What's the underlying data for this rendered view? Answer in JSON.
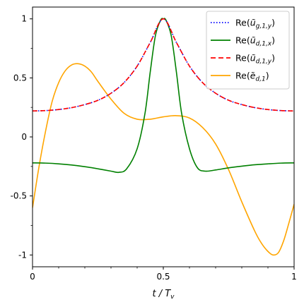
{
  "chart_data": {
    "type": "line",
    "title": "",
    "xlabel": "t / T_v",
    "ylabel": "",
    "xlim": [
      0,
      1
    ],
    "ylim": [
      -1.1,
      1.1
    ],
    "xticks": [
      0,
      0.5,
      1
    ],
    "xtick_labels": [
      "0",
      "0.5",
      "1"
    ],
    "yticks": [
      -1,
      -0.5,
      0,
      0.5,
      1
    ],
    "ytick_labels": [
      "-1",
      "-0.5",
      "0",
      "0.5",
      "1"
    ],
    "grid": false,
    "legend_position": "top-right",
    "series": [
      {
        "name": "Re(ũ_{g,1,y})",
        "color": "#0000ff",
        "dash": "dotted",
        "x": [
          0,
          0.05,
          0.1,
          0.15,
          0.2,
          0.25,
          0.3,
          0.35,
          0.4,
          0.45,
          0.5,
          0.55,
          0.6,
          0.65,
          0.7,
          0.75,
          0.8,
          0.85,
          0.9,
          0.95,
          1
        ],
        "y": [
          0.22,
          0.223,
          0.232,
          0.248,
          0.274,
          0.31,
          0.37,
          0.46,
          0.6,
          0.8,
          1.0,
          0.8,
          0.6,
          0.46,
          0.37,
          0.31,
          0.274,
          0.248,
          0.232,
          0.223,
          0.22
        ]
      },
      {
        "name": "Re(ũ_{d,1,x})",
        "color": "#008000",
        "dash": "solid",
        "x": [
          0,
          0.05,
          0.1,
          0.15,
          0.2,
          0.25,
          0.3,
          0.33,
          0.36,
          0.4,
          0.43,
          0.45,
          0.47,
          0.49,
          0.5,
          0.51,
          0.53,
          0.55,
          0.57,
          0.6,
          0.63,
          0.66,
          0.7,
          0.75,
          0.8,
          0.85,
          0.9,
          0.95,
          1
        ],
        "y": [
          -0.22,
          -0.222,
          -0.228,
          -0.238,
          -0.252,
          -0.27,
          -0.29,
          -0.3,
          -0.27,
          -0.1,
          0.2,
          0.55,
          0.86,
          0.99,
          1.0,
          0.99,
          0.86,
          0.55,
          0.2,
          -0.1,
          -0.26,
          -0.29,
          -0.28,
          -0.262,
          -0.248,
          -0.236,
          -0.228,
          -0.222,
          -0.22
        ]
      },
      {
        "name": "Re(ũ_{d,1,y})",
        "color": "#ff0000",
        "dash": "dashed",
        "x": [
          0,
          0.05,
          0.1,
          0.15,
          0.2,
          0.25,
          0.3,
          0.35,
          0.4,
          0.45,
          0.5,
          0.55,
          0.6,
          0.65,
          0.7,
          0.75,
          0.8,
          0.85,
          0.9,
          0.95,
          1
        ],
        "y": [
          0.22,
          0.223,
          0.232,
          0.248,
          0.274,
          0.31,
          0.37,
          0.46,
          0.6,
          0.8,
          1.0,
          0.8,
          0.6,
          0.46,
          0.37,
          0.31,
          0.274,
          0.248,
          0.232,
          0.223,
          0.22
        ]
      },
      {
        "name": "Re(ẽ_{d,1})",
        "color": "#ffa500",
        "dash": "solid",
        "x": [
          0,
          0.025,
          0.05,
          0.075,
          0.1,
          0.125,
          0.15,
          0.175,
          0.2,
          0.225,
          0.25,
          0.3,
          0.35,
          0.4,
          0.45,
          0.5,
          0.55,
          0.6,
          0.65,
          0.7,
          0.75,
          0.8,
          0.85,
          0.875,
          0.9,
          0.92,
          0.94,
          0.96,
          0.98,
          1
        ],
        "y": [
          -0.6,
          -0.25,
          0.05,
          0.3,
          0.46,
          0.56,
          0.61,
          0.62,
          0.6,
          0.55,
          0.47,
          0.32,
          0.2,
          0.15,
          0.15,
          0.17,
          0.18,
          0.16,
          0.08,
          -0.06,
          -0.28,
          -0.55,
          -0.8,
          -0.9,
          -0.97,
          -1.0,
          -0.98,
          -0.88,
          -0.73,
          -0.57
        ]
      }
    ]
  }
}
